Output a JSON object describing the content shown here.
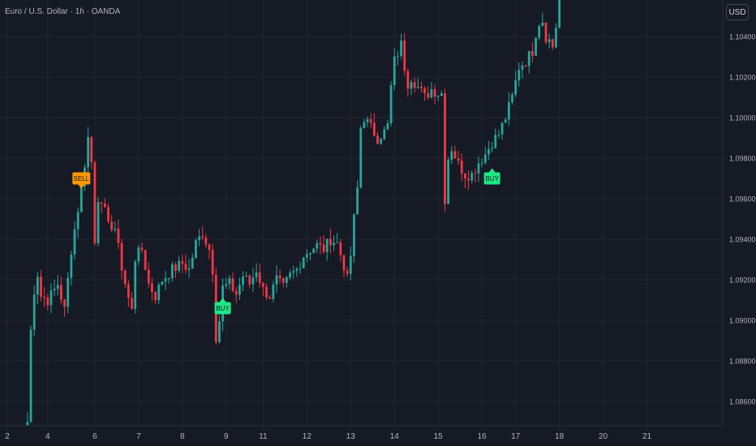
{
  "header": {
    "title": "Euro / U.S. Dollar · 1h · OANDA",
    "currency_button": "USD"
  },
  "colors": {
    "background": "#161a25",
    "grid": "#222632",
    "up": "#26a69a",
    "down": "#f23645",
    "sell": "#ff9800",
    "buy": "#1ee884",
    "axis_text": "#b2b5be"
  },
  "chart_data": {
    "type": "candlestick",
    "title": "Euro / U.S. Dollar · 1h · OANDA",
    "xlabel": "",
    "ylabel": "",
    "ylim": [
      1.0848,
      1.1068
    ],
    "x_ticks": [
      {
        "label": "2",
        "pos": 0
      },
      {
        "label": "4",
        "pos": 12
      },
      {
        "label": "6",
        "pos": 26
      },
      {
        "label": "7",
        "pos": 39
      },
      {
        "label": "8",
        "pos": 52
      },
      {
        "label": "9",
        "pos": 65
      },
      {
        "label": "11",
        "pos": 76
      },
      {
        "label": "12",
        "pos": 89
      },
      {
        "label": "13",
        "pos": 102
      },
      {
        "label": "14",
        "pos": 115
      },
      {
        "label": "15",
        "pos": 128
      },
      {
        "label": "16",
        "pos": 141
      },
      {
        "label": "17",
        "pos": 151
      },
      {
        "label": "18",
        "pos": 164
      },
      {
        "label": "20",
        "pos": 177
      },
      {
        "label": "21",
        "pos": 190
      }
    ],
    "y_ticks": [
      "1.08600",
      "1.08800",
      "1.09000",
      "1.09200",
      "1.09400",
      "1.09600",
      "1.09800",
      "1.10000",
      "1.10200",
      "1.10400"
    ],
    "y_tick_values": [
      1.086,
      1.088,
      1.09,
      1.092,
      1.094,
      1.096,
      1.098,
      1.1,
      1.102,
      1.104
    ],
    "anchors": [
      [
        6,
        1.085
      ],
      [
        7,
        1.0895
      ],
      [
        8,
        1.0915
      ],
      [
        9,
        1.0923
      ],
      [
        10,
        1.0912
      ],
      [
        12,
        1.091
      ],
      [
        14,
        1.0915
      ],
      [
        15,
        1.0918
      ],
      [
        17,
        1.0905
      ],
      [
        19,
        1.0935
      ],
      [
        20,
        1.0945
      ],
      [
        22,
        1.0965
      ],
      [
        24,
        1.099
      ],
      [
        25,
        1.0978
      ],
      [
        26,
        1.094
      ],
      [
        27,
        1.0961
      ],
      [
        28,
        1.0955
      ],
      [
        30,
        1.0951
      ],
      [
        31,
        1.0945
      ],
      [
        33,
        1.094
      ],
      [
        34,
        1.0925
      ],
      [
        36,
        1.091
      ],
      [
        37,
        1.0907
      ],
      [
        38,
        1.0931
      ],
      [
        40,
        1.0935
      ],
      [
        42,
        1.0918
      ],
      [
        44,
        1.0912
      ],
      [
        46,
        1.092
      ],
      [
        49,
        1.0925
      ],
      [
        52,
        1.0928
      ],
      [
        54,
        1.0925
      ],
      [
        56,
        1.0938
      ],
      [
        58,
        1.0943
      ],
      [
        60,
        1.0935
      ],
      [
        61,
        1.0925
      ],
      [
        62,
        1.0892
      ],
      [
        63,
        1.09
      ],
      [
        64,
        1.0916
      ],
      [
        66,
        1.0918
      ],
      [
        68,
        1.0913
      ],
      [
        70,
        1.0922
      ],
      [
        72,
        1.0918
      ],
      [
        74,
        1.0925
      ],
      [
        76,
        1.0915
      ],
      [
        78,
        1.0912
      ],
      [
        80,
        1.092
      ],
      [
        82,
        1.0916
      ],
      [
        84,
        1.0922
      ],
      [
        86,
        1.0925
      ],
      [
        88,
        1.0932
      ],
      [
        90,
        1.0935
      ],
      [
        92,
        1.0937
      ],
      [
        94,
        1.0935
      ],
      [
        96,
        1.094
      ],
      [
        98,
        1.0938
      ],
      [
        100,
        1.0927
      ],
      [
        101,
        1.092
      ],
      [
        102,
        1.0932
      ],
      [
        103,
        1.095
      ],
      [
        104,
        1.0965
      ],
      [
        105,
        1.0995
      ],
      [
        106,
        1.1
      ],
      [
        108,
        1.0995
      ],
      [
        110,
        1.099
      ],
      [
        112,
        1.0993
      ],
      [
        113,
        1.0996
      ],
      [
        114,
        1.1015
      ],
      [
        115,
        1.1028
      ],
      [
        117,
        1.1036
      ],
      [
        118,
        1.1025
      ],
      [
        119,
        1.1017
      ],
      [
        120,
        1.102
      ],
      [
        122,
        1.1015
      ],
      [
        124,
        1.101
      ],
      [
        126,
        1.1014
      ],
      [
        128,
        1.1012
      ],
      [
        129,
        1.1012
      ],
      [
        130,
        1.096
      ],
      [
        131,
        1.098
      ],
      [
        132,
        1.0985
      ],
      [
        134,
        1.0977
      ],
      [
        136,
        1.0972
      ],
      [
        138,
        1.0972
      ],
      [
        140,
        1.0978
      ],
      [
        142,
        1.0982
      ],
      [
        144,
        1.0988
      ],
      [
        146,
        1.0992
      ],
      [
        148,
        1.1
      ],
      [
        150,
        1.101
      ],
      [
        152,
        1.1025
      ],
      [
        154,
        1.1028
      ],
      [
        156,
        1.1033
      ],
      [
        157,
        1.1042
      ],
      [
        158,
        1.1047
      ],
      [
        159,
        1.1048
      ],
      [
        160,
        1.104
      ],
      [
        161,
        1.1038
      ],
      [
        162,
        1.1035
      ],
      [
        163,
        1.1045
      ],
      [
        164,
        1.1065
      ]
    ],
    "signals": [
      {
        "label": "SELL",
        "type": "sell",
        "index": 22,
        "price": 1.0963
      },
      {
        "label": "BUY",
        "type": "buy",
        "index": 64,
        "price": 1.0913
      },
      {
        "label": "BUY",
        "type": "buy",
        "index": 144,
        "price": 1.0977
      }
    ]
  }
}
